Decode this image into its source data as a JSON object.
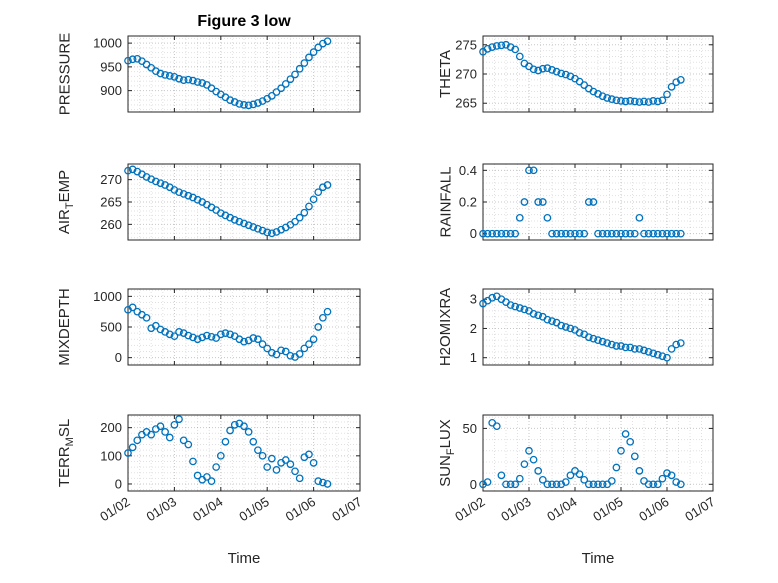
{
  "figure_title": "Figure 3 low",
  "xlabel": "Time",
  "colors": {
    "marker": "#0072BD",
    "axes": "#262626",
    "grid_major": "rgba(0,0,0,0.22)",
    "grid_minor": "rgba(0,0,0,0.12)"
  },
  "x_axis": {
    "lim": [
      0,
      5
    ],
    "ticks": [
      0,
      1,
      2,
      3,
      4,
      5
    ],
    "tick_labels": [
      "01/02",
      "01/03",
      "01/04",
      "01/05",
      "01/06",
      "01/07"
    ],
    "minor_step": 0.25,
    "x": [
      0,
      0.1,
      0.2,
      0.3,
      0.4,
      0.5,
      0.6,
      0.7,
      0.8,
      0.9,
      1.0,
      1.1,
      1.2,
      1.3,
      1.4,
      1.5,
      1.6,
      1.7,
      1.8,
      1.9,
      2.0,
      2.1,
      2.2,
      2.3,
      2.4,
      2.5,
      2.6,
      2.7,
      2.8,
      2.9,
      3.0,
      3.1,
      3.2,
      3.3,
      3.4,
      3.5,
      3.6,
      3.7,
      3.8,
      3.9,
      4.0,
      4.1,
      4.2,
      4.3
    ]
  },
  "chart_data": [
    {
      "type": "scatter",
      "id": "pressure",
      "ylabel_pre": "PRESSURE",
      "ylabel_sub": "",
      "ylabel_post": "",
      "ylim": [
        855,
        1015
      ],
      "yticks": [
        900,
        950,
        1000
      ],
      "y": [
        963,
        966,
        967,
        962,
        955,
        948,
        941,
        936,
        933,
        931,
        929,
        925,
        922,
        923,
        921,
        918,
        916,
        912,
        905,
        898,
        892,
        886,
        880,
        876,
        872,
        870,
        869,
        871,
        874,
        878,
        883,
        889,
        897,
        905,
        914,
        924,
        934,
        946,
        958,
        970,
        981,
        991,
        999,
        1004
      ]
    },
    {
      "type": "scatter",
      "id": "theta",
      "ylabel_pre": "THETA",
      "ylabel_sub": "",
      "ylabel_post": "",
      "ylim": [
        263.5,
        276.5
      ],
      "yticks": [
        265,
        270,
        275
      ],
      "y": [
        273.8,
        274.3,
        274.6,
        274.8,
        274.9,
        275.0,
        274.6,
        274.2,
        273.0,
        271.8,
        271.3,
        270.8,
        270.6,
        270.9,
        271.0,
        270.7,
        270.4,
        270.1,
        269.9,
        269.6,
        269.2,
        268.7,
        268.1,
        267.5,
        267.0,
        266.6,
        266.2,
        265.9,
        265.7,
        265.5,
        265.4,
        265.3,
        265.4,
        265.3,
        265.2,
        265.3,
        265.2,
        265.4,
        265.3,
        265.5,
        266.5,
        267.8,
        268.6,
        269.0
      ]
    },
    {
      "type": "scatter",
      "id": "air-temp",
      "ylabel_pre": "AIR",
      "ylabel_sub": "T",
      "ylabel_post": "EMP",
      "ylim": [
        256.5,
        273.5
      ],
      "yticks": [
        260,
        265,
        270
      ],
      "y": [
        272.0,
        272.3,
        271.8,
        271.2,
        270.6,
        270.1,
        269.6,
        269.2,
        268.8,
        268.3,
        267.7,
        267.2,
        266.8,
        266.4,
        266.0,
        265.5,
        265.0,
        264.4,
        263.8,
        263.2,
        262.5,
        262.0,
        261.5,
        261.0,
        260.6,
        260.2,
        259.8,
        259.4,
        259.0,
        258.6,
        258.2,
        258.0,
        258.3,
        258.8,
        259.3,
        259.9,
        260.6,
        261.5,
        262.6,
        264.0,
        265.6,
        267.2,
        268.3,
        268.8
      ]
    },
    {
      "type": "scatter",
      "id": "rainfall",
      "ylabel_pre": "RAINFALL",
      "ylabel_sub": "",
      "ylabel_post": "",
      "ylim": [
        -0.04,
        0.44
      ],
      "yticks": [
        0,
        0.2,
        0.4
      ],
      "y": [
        0,
        0,
        0,
        0,
        0,
        0,
        0,
        0,
        0.1,
        0.2,
        0.4,
        0.4,
        0.2,
        0.2,
        0.1,
        0,
        0,
        0,
        0,
        0,
        0,
        0,
        0,
        0.2,
        0.2,
        0,
        0,
        0,
        0,
        0,
        0,
        0,
        0,
        0,
        0.1,
        0,
        0,
        0,
        0,
        0,
        0,
        0,
        0,
        0
      ]
    },
    {
      "type": "scatter",
      "id": "mixdepth",
      "ylabel_pre": "MIXDEPTH",
      "ylabel_sub": "",
      "ylabel_post": "",
      "ylim": [
        -120,
        1120
      ],
      "yticks": [
        0,
        500,
        1000
      ],
      "y": [
        780,
        820,
        750,
        700,
        650,
        480,
        520,
        460,
        420,
        380,
        350,
        420,
        400,
        360,
        330,
        300,
        330,
        360,
        340,
        320,
        380,
        400,
        380,
        350,
        300,
        260,
        280,
        320,
        300,
        220,
        150,
        80,
        50,
        120,
        100,
        30,
        10,
        60,
        150,
        220,
        300,
        500,
        650,
        750
      ]
    },
    {
      "type": "scatter",
      "id": "h2omixra",
      "ylabel_pre": "H2OMIXRA",
      "ylabel_sub": "",
      "ylabel_post": "",
      "ylim": [
        0.75,
        3.35
      ],
      "yticks": [
        1,
        2,
        3
      ],
      "y": [
        2.85,
        2.95,
        3.05,
        3.1,
        3.0,
        2.9,
        2.8,
        2.75,
        2.7,
        2.65,
        2.6,
        2.5,
        2.45,
        2.4,
        2.3,
        2.25,
        2.2,
        2.1,
        2.05,
        2.0,
        1.95,
        1.85,
        1.8,
        1.7,
        1.65,
        1.6,
        1.55,
        1.5,
        1.45,
        1.4,
        1.4,
        1.35,
        1.35,
        1.3,
        1.3,
        1.25,
        1.2,
        1.15,
        1.1,
        1.05,
        1.0,
        1.3,
        1.45,
        1.5
      ]
    },
    {
      "type": "scatter",
      "id": "terr-msl",
      "ylabel_pre": "TERR",
      "ylabel_sub": "M",
      "ylabel_post": "SL",
      "ylim": [
        -25,
        245
      ],
      "yticks": [
        0,
        100,
        200
      ],
      "y": [
        110,
        130,
        155,
        175,
        185,
        175,
        195,
        205,
        185,
        165,
        210,
        230,
        155,
        140,
        80,
        30,
        15,
        25,
        10,
        60,
        100,
        150,
        190,
        210,
        215,
        205,
        185,
        150,
        120,
        100,
        60,
        90,
        50,
        75,
        85,
        70,
        45,
        20,
        95,
        105,
        75,
        10,
        5,
        0
      ]
    },
    {
      "type": "scatter",
      "id": "sun-flux",
      "ylabel_pre": "SUN",
      "ylabel_sub": "F",
      "ylabel_post": "LUX",
      "ylim": [
        -6,
        62
      ],
      "yticks": [
        0,
        50
      ],
      "y": [
        0,
        2,
        55,
        52,
        8,
        0,
        0,
        0,
        5,
        18,
        30,
        22,
        12,
        4,
        0,
        0,
        0,
        0,
        2,
        8,
        12,
        9,
        4,
        0,
        0,
        0,
        0,
        0,
        3,
        15,
        30,
        45,
        38,
        25,
        12,
        3,
        0,
        0,
        0,
        5,
        10,
        8,
        2,
        0
      ]
    }
  ]
}
